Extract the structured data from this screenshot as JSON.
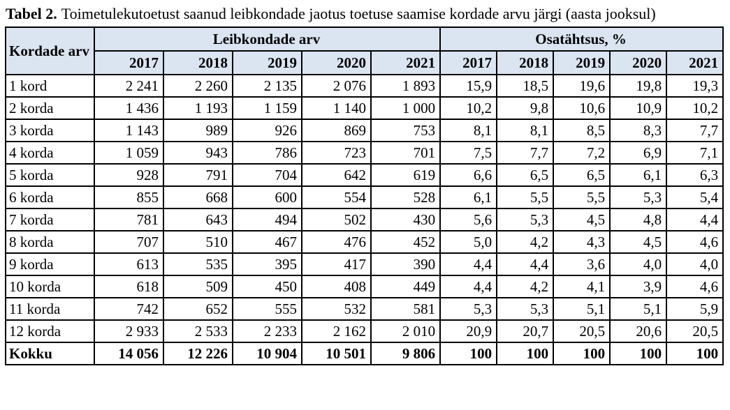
{
  "caption": {
    "label": "Tabel 2.",
    "text": "Toimetulekutoetust saanud leibkondade jaotus toetuse saamise kordade arvu järgi (aasta jooksul)"
  },
  "colors": {
    "header_bg": "#dbe5f1",
    "border": "#000000",
    "text": "#000000"
  },
  "table": {
    "corner_header": "Kordade arv",
    "group_headers": [
      "Leibkondade arv",
      "Osatähtsus, %"
    ],
    "years": [
      "2017",
      "2018",
      "2019",
      "2020",
      "2021"
    ],
    "rows": [
      {
        "label": "1 kord",
        "counts": [
          "2 241",
          "2 260",
          "2 135",
          "2 076",
          "1 893"
        ],
        "shares": [
          "15,9",
          "18,5",
          "19,6",
          "19,8",
          "19,3"
        ]
      },
      {
        "label": "2 korda",
        "counts": [
          "1 436",
          "1 193",
          "1 159",
          "1 140",
          "1 000"
        ],
        "shares": [
          "10,2",
          "9,8",
          "10,6",
          "10,9",
          "10,2"
        ]
      },
      {
        "label": "3 korda",
        "counts": [
          "1 143",
          "989",
          "926",
          "869",
          "753"
        ],
        "shares": [
          "8,1",
          "8,1",
          "8,5",
          "8,3",
          "7,7"
        ]
      },
      {
        "label": "4 korda",
        "counts": [
          "1 059",
          "943",
          "786",
          "723",
          "701"
        ],
        "shares": [
          "7,5",
          "7,7",
          "7,2",
          "6,9",
          "7,1"
        ]
      },
      {
        "label": "5 korda",
        "counts": [
          "928",
          "791",
          "704",
          "642",
          "619"
        ],
        "shares": [
          "6,6",
          "6,5",
          "6,5",
          "6,1",
          "6,3"
        ]
      },
      {
        "label": "6 korda",
        "counts": [
          "855",
          "668",
          "600",
          "554",
          "528"
        ],
        "shares": [
          "6,1",
          "5,5",
          "5,5",
          "5,3",
          "5,4"
        ]
      },
      {
        "label": "7 korda",
        "counts": [
          "781",
          "643",
          "494",
          "502",
          "430"
        ],
        "shares": [
          "5,6",
          "5,3",
          "4,5",
          "4,8",
          "4,4"
        ]
      },
      {
        "label": "8 korda",
        "counts": [
          "707",
          "510",
          "467",
          "476",
          "452"
        ],
        "shares": [
          "5,0",
          "4,2",
          "4,3",
          "4,5",
          "4,6"
        ]
      },
      {
        "label": "9 korda",
        "counts": [
          "613",
          "535",
          "395",
          "417",
          "390"
        ],
        "shares": [
          "4,4",
          "4,4",
          "3,6",
          "4,0",
          "4,0"
        ]
      },
      {
        "label": "10 korda",
        "counts": [
          "618",
          "509",
          "450",
          "408",
          "449"
        ],
        "shares": [
          "4,4",
          "4,2",
          "4,1",
          "3,9",
          "4,6"
        ]
      },
      {
        "label": "11 korda",
        "counts": [
          "742",
          "652",
          "555",
          "532",
          "581"
        ],
        "shares": [
          "5,3",
          "5,3",
          "5,1",
          "5,1",
          "5,9"
        ]
      },
      {
        "label": "12 korda",
        "counts": [
          "2 933",
          "2 533",
          "2 233",
          "2 162",
          "2 010"
        ],
        "shares": [
          "20,9",
          "20,7",
          "20,5",
          "20,6",
          "20,5"
        ]
      }
    ],
    "total": {
      "label": "Kokku",
      "counts": [
        "14 056",
        "12 226",
        "10 904",
        "10 501",
        "9 806"
      ],
      "shares": [
        "100",
        "100",
        "100",
        "100",
        "100"
      ]
    }
  }
}
